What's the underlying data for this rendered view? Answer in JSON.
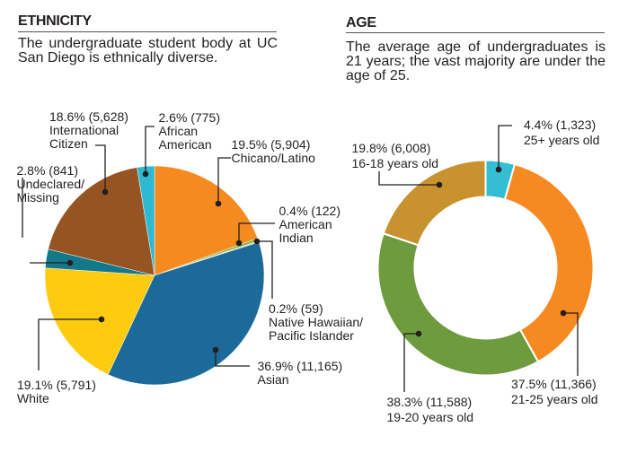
{
  "chart_data": [
    {
      "type": "pie",
      "title": "ETHNICITY",
      "subtitle_lines": [
        "The undergraduate student body at UC",
        "San Diego is ethnically diverse."
      ],
      "start": "top",
      "direction": "clockwise",
      "slices": [
        {
          "label": "Chicano/Latino",
          "label_lines": [
            "Chicano/Latino"
          ],
          "percent": 19.5,
          "count": 5904,
          "display": "19.5% (5,904)",
          "color": "#F58B1F"
        },
        {
          "label": "American Indian",
          "label_lines": [
            "American",
            "Indian"
          ],
          "percent": 0.4,
          "count": 122,
          "display": "0.4% (122)",
          "color": "#8DB24A"
        },
        {
          "label": "Native Hawaiian/Pacific Islander",
          "label_lines": [
            "Native Hawaiian/",
            "Pacific Islander"
          ],
          "percent": 0.2,
          "count": 59,
          "display": "0.2% (59)",
          "color": "#C5D49A"
        },
        {
          "label": "Asian",
          "label_lines": [
            "Asian"
          ],
          "percent": 36.9,
          "count": 11165,
          "display": "36.9% (11,165)",
          "color": "#1B6A9A"
        },
        {
          "label": "White",
          "label_lines": [
            "White"
          ],
          "percent": 19.1,
          "count": 5791,
          "display": "19.1% (5,791)",
          "color": "#FDCB10"
        },
        {
          "label": "Undeclared/Missing",
          "label_lines": [
            "Undeclared/",
            "Missing"
          ],
          "percent": 2.8,
          "count": 841,
          "display": "2.8% (841)",
          "color": "#13798A"
        },
        {
          "label": "International Citizen",
          "label_lines": [
            "International",
            "Citizen"
          ],
          "percent": 18.6,
          "count": 5628,
          "display": "18.6% (5,628)",
          "color": "#975423"
        },
        {
          "label": "African American",
          "label_lines": [
            "African",
            "American"
          ],
          "percent": 2.6,
          "count": 775,
          "display": "2.6% (775)",
          "color": "#2FB9D0"
        }
      ]
    },
    {
      "type": "pie",
      "variant": "donut",
      "title": "AGE",
      "subtitle_lines": [
        "The average age of undergraduates is",
        "21 years; the vast majority are under the",
        "age of 25."
      ],
      "start": "top",
      "direction": "clockwise",
      "slices": [
        {
          "label": "25+ years old",
          "percent": 4.4,
          "count": 1323,
          "display": "4.4% (1,323)",
          "color": "#35BDD4"
        },
        {
          "label": "21-25 years old",
          "percent": 37.5,
          "count": 11366,
          "display": "37.5% (11,366)",
          "color": "#F68A22"
        },
        {
          "label": "19-20 years old",
          "percent": 38.3,
          "count": 11588,
          "display": "38.3% (11,588)",
          "color": "#6E9B3E"
        },
        {
          "label": "16-18 years old",
          "percent": 19.8,
          "count": 6008,
          "display": "19.8% (6,008)",
          "color": "#C8922F"
        }
      ]
    }
  ]
}
